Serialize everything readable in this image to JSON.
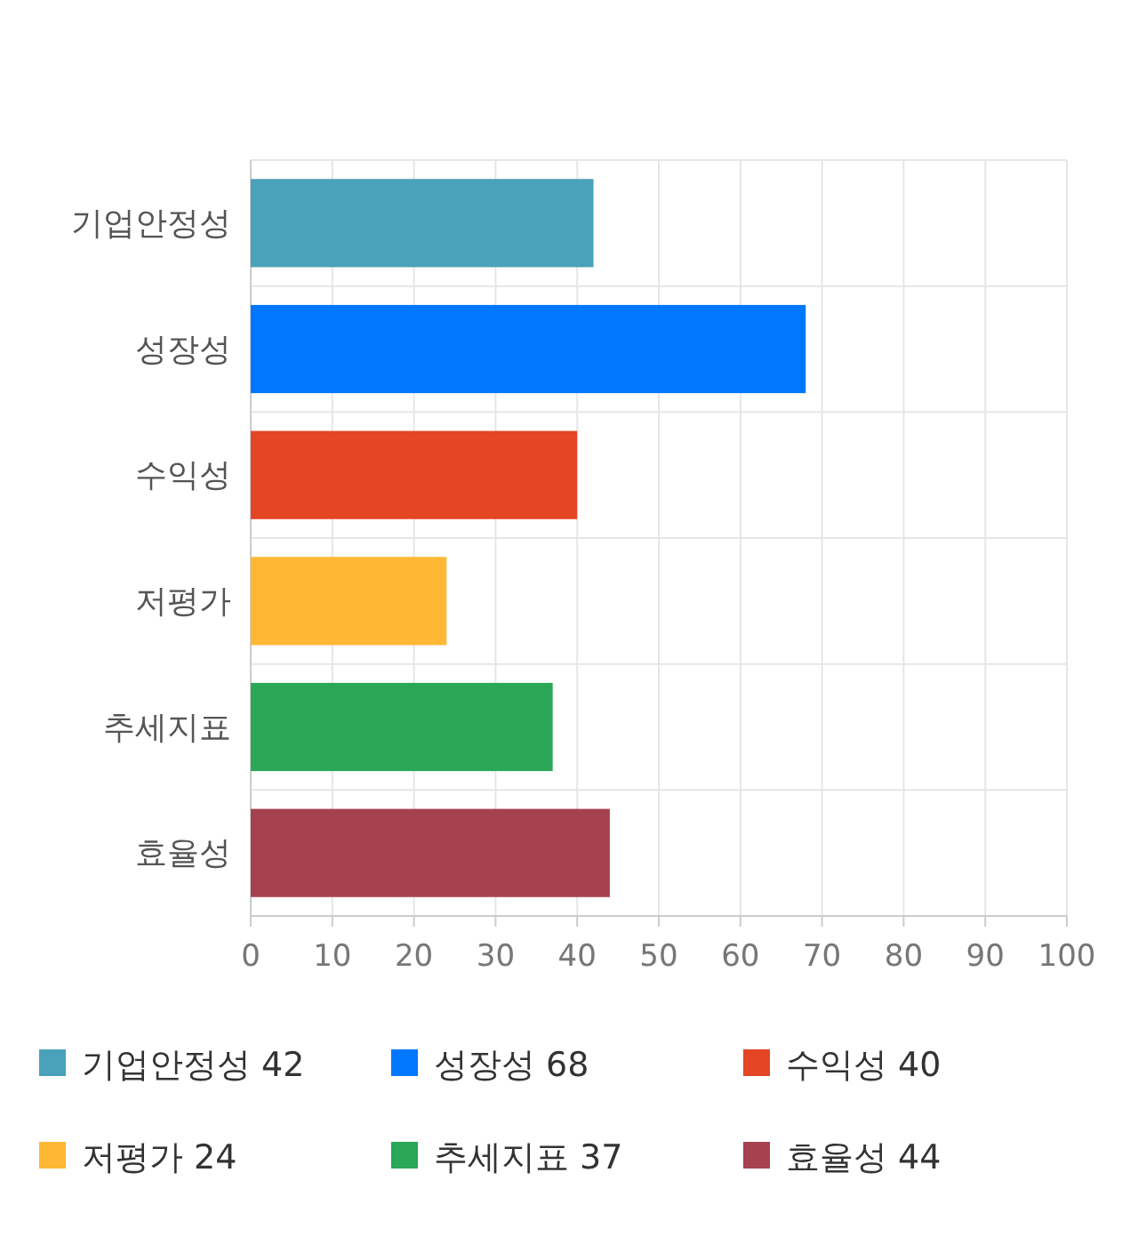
{
  "chart_data": {
    "type": "bar",
    "orientation": "horizontal",
    "stacked": true,
    "categories": [
      "기업안정성",
      "성장성",
      "수익성",
      "저평가",
      "추세지표",
      "효율성"
    ],
    "series": [
      {
        "name": "기업안정성",
        "color": "#4aa1ba",
        "values": [
          42,
          null,
          null,
          null,
          null,
          null
        ]
      },
      {
        "name": "성장성",
        "color": "#0077ff",
        "values": [
          null,
          68,
          null,
          null,
          null,
          null
        ]
      },
      {
        "name": "수익성",
        "color": "#e34525",
        "values": [
          null,
          null,
          40,
          null,
          null,
          null
        ]
      },
      {
        "name": "저평가",
        "color": "#ffb833",
        "values": [
          null,
          null,
          null,
          24,
          null,
          null
        ]
      },
      {
        "name": "추세지표",
        "color": "#2aa757",
        "values": [
          null,
          null,
          null,
          null,
          37,
          null
        ]
      },
      {
        "name": "효율성",
        "color": "#a6424f",
        "values": [
          null,
          null,
          null,
          null,
          null,
          44
        ]
      }
    ],
    "annotations": [
      "42",
      "68",
      "40",
      "24",
      "37",
      "44"
    ],
    "xlim": [
      0,
      100
    ],
    "xticks": [
      0,
      10,
      20,
      30,
      40,
      50,
      60,
      70,
      80,
      90,
      100
    ],
    "grid": true,
    "legend": "bottom"
  }
}
